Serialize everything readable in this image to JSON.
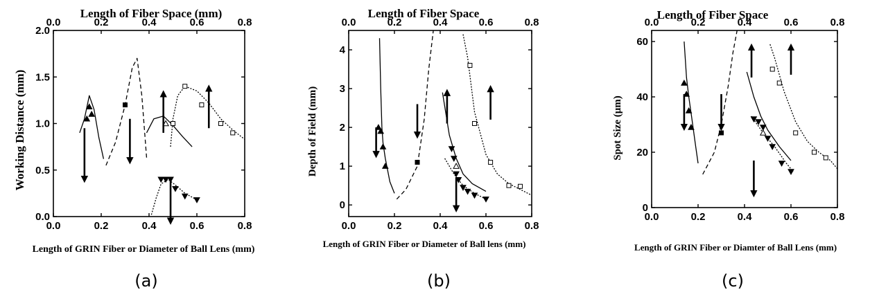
{
  "panels_text": {
    "a": {
      "caption": "(a)",
      "top_label": "Length of Fiber Space (mm)",
      "bottom_label": "Length of GRIN Fiber or Diameter of Ball Lens (mm)",
      "left_label": "Working Distance (mm)"
    },
    "b": {
      "caption": "(b)",
      "top_label": "Length of Fiber Space",
      "bottom_label": "Length of GRIN Fiber or Diameter of Ball lens (mm)",
      "left_label": "Depth of Field (mm)"
    },
    "c": {
      "caption": "(c)",
      "top_label": "Length of Fiber Space",
      "bottom_label": "Length of GRIN Fiber or Diamter of Ball Lens (mm)",
      "left_label": "Spot Size (μm)"
    }
  },
  "chart_data": [
    {
      "type": "line",
      "caption": "(a)",
      "title": "Length of Fiber Space (mm)",
      "xlabel": "Length of GRIN Fiber or Diameter of Ball Lens (mm)",
      "ylabel": "Working Distance (mm)",
      "xlim": [
        0.0,
        0.8
      ],
      "ylim": [
        0.0,
        2.0
      ],
      "xticks": [
        "0.0",
        "0.2",
        "0.4",
        "0.6",
        "0.8"
      ],
      "yticks": [
        "0.0",
        "0.5",
        "1.0",
        "1.5",
        "2.0"
      ],
      "top_xticks": [
        "0.0",
        "0.2",
        "0.4",
        "0.6",
        "0.8"
      ],
      "grid": false,
      "series": [
        {
          "style": "solid",
          "x": [
            0.11,
            0.13,
            0.15,
            0.17,
            0.19,
            0.21
          ],
          "y": [
            0.9,
            1.05,
            1.3,
            1.15,
            0.85,
            0.62
          ]
        },
        {
          "style": "dashed",
          "x": [
            0.22,
            0.26,
            0.3,
            0.33,
            0.35,
            0.37,
            0.39
          ],
          "y": [
            0.55,
            0.8,
            1.2,
            1.6,
            1.7,
            1.3,
            0.63
          ]
        },
        {
          "style": "solid",
          "x": [
            0.39,
            0.42,
            0.46,
            0.5,
            0.54,
            0.58
          ],
          "y": [
            0.9,
            1.05,
            1.08,
            0.98,
            0.86,
            0.75
          ]
        },
        {
          "style": "dotted",
          "x": [
            0.49,
            0.5,
            0.52,
            0.55,
            0.6,
            0.65,
            0.7,
            0.75,
            0.8
          ],
          "y": [
            0.75,
            1.05,
            1.3,
            1.4,
            1.35,
            1.22,
            1.05,
            0.93,
            0.83
          ]
        },
        {
          "style": "dotted",
          "x": [
            0.41,
            0.43,
            0.45,
            0.48,
            0.51,
            0.55,
            0.6
          ],
          "y": [
            0.02,
            0.2,
            0.35,
            0.4,
            0.34,
            0.25,
            0.18
          ]
        }
      ],
      "markers": [
        {
          "shape": "triangle-up",
          "x": [
            0.14,
            0.15,
            0.16
          ],
          "y": [
            1.05,
            1.18,
            1.1
          ]
        },
        {
          "shape": "square-filled",
          "x": [
            0.3
          ],
          "y": [
            1.2
          ]
        },
        {
          "shape": "triangle-up-open",
          "x": [
            0.47
          ],
          "y": [
            1.0
          ]
        },
        {
          "shape": "square-open",
          "x": [
            0.5,
            0.55,
            0.62,
            0.7,
            0.75
          ],
          "y": [
            1.0,
            1.4,
            1.2,
            1.0,
            0.9
          ]
        },
        {
          "shape": "triangle-down",
          "x": [
            0.45,
            0.47,
            0.49,
            0.51,
            0.55,
            0.6
          ],
          "y": [
            0.4,
            0.4,
            0.4,
            0.3,
            0.22,
            0.18
          ]
        }
      ],
      "arrows": [
        {
          "direction": "down",
          "x": 0.13,
          "y_from": 0.95,
          "y_to": 0.4
        },
        {
          "direction": "down",
          "x": 0.32,
          "y_from": 1.05,
          "y_to": 0.6
        },
        {
          "direction": "up",
          "x": 0.46,
          "y_from": 0.9,
          "y_to": 1.32
        },
        {
          "direction": "down",
          "x": 0.49,
          "y_from": 0.38,
          "y_to": -0.05
        },
        {
          "direction": "up",
          "x": 0.65,
          "y_from": 0.95,
          "y_to": 1.38
        }
      ]
    },
    {
      "type": "line",
      "caption": "(b)",
      "title": "Length of Fiber Space",
      "xlabel": "Length of GRIN Fiber or Diameter of Ball lens (mm)",
      "ylabel": "Depth of Field (mm)",
      "xlim": [
        0.0,
        0.8
      ],
      "ylim": [
        -0.3,
        4.5
      ],
      "xticks": [
        "0.0",
        "0.2",
        "0.4",
        "0.6",
        "0.8"
      ],
      "yticks": [
        "0",
        "1",
        "2",
        "3",
        "4"
      ],
      "top_xticks": [
        "0.0",
        "0.2",
        "0.4",
        "0.6",
        "0.8"
      ],
      "grid": false,
      "series": [
        {
          "style": "solid",
          "x": [
            0.135,
            0.14,
            0.145,
            0.15,
            0.16,
            0.17,
            0.18,
            0.2
          ],
          "y": [
            4.3,
            3.0,
            2.0,
            1.6,
            1.2,
            0.9,
            0.6,
            0.3
          ]
        },
        {
          "style": "dashed",
          "x": [
            0.21,
            0.25,
            0.3,
            0.33,
            0.35,
            0.37
          ],
          "y": [
            0.15,
            0.4,
            1.0,
            2.2,
            3.5,
            4.5
          ]
        },
        {
          "style": "solid",
          "x": [
            0.41,
            0.44,
            0.47,
            0.5,
            0.54,
            0.6
          ],
          "y": [
            2.9,
            1.8,
            1.2,
            0.8,
            0.55,
            0.35
          ]
        },
        {
          "style": "dotted",
          "x": [
            0.42,
            0.46,
            0.5,
            0.55,
            0.6
          ],
          "y": [
            1.2,
            0.8,
            0.5,
            0.3,
            0.15
          ]
        },
        {
          "style": "dotted",
          "x": [
            0.5,
            0.52,
            0.55,
            0.6,
            0.65,
            0.7,
            0.8
          ],
          "y": [
            4.4,
            3.8,
            2.4,
            1.3,
            0.8,
            0.55,
            0.25
          ]
        }
      ],
      "markers": [
        {
          "shape": "triangle-up",
          "x": [
            0.13,
            0.14,
            0.15,
            0.16
          ],
          "y": [
            2.0,
            1.9,
            1.5,
            1.0
          ]
        },
        {
          "shape": "square-filled",
          "x": [
            0.3
          ],
          "y": [
            1.1
          ]
        },
        {
          "shape": "triangle-up-open",
          "x": [
            0.47
          ],
          "y": [
            1.0
          ]
        },
        {
          "shape": "square-open",
          "x": [
            0.53,
            0.55,
            0.62,
            0.7,
            0.75
          ],
          "y": [
            3.6,
            2.1,
            1.1,
            0.5,
            0.48
          ]
        },
        {
          "shape": "triangle-down",
          "x": [
            0.45,
            0.46,
            0.47,
            0.48,
            0.5,
            0.52,
            0.55,
            0.6
          ],
          "y": [
            1.45,
            1.2,
            0.8,
            0.65,
            0.45,
            0.35,
            0.25,
            0.15
          ]
        }
      ],
      "arrows": [
        {
          "direction": "down",
          "x": 0.12,
          "y_from": 2.0,
          "y_to": 1.3
        },
        {
          "direction": "down",
          "x": 0.3,
          "y_from": 2.6,
          "y_to": 1.8
        },
        {
          "direction": "up",
          "x": 0.43,
          "y_from": 2.1,
          "y_to": 2.9
        },
        {
          "direction": "down",
          "x": 0.47,
          "y_from": 0.7,
          "y_to": -0.1
        },
        {
          "direction": "up",
          "x": 0.62,
          "y_from": 2.2,
          "y_to": 3.0
        }
      ]
    },
    {
      "type": "line",
      "caption": "(c)",
      "title": "Length of Fiber Space",
      "xlabel": "Length of GRIN Fiber or Diamter of Ball Lens (mm)",
      "ylabel": "Spot Size (μm)",
      "xlim": [
        0.0,
        0.8
      ],
      "ylim": [
        0,
        64
      ],
      "xticks": [
        "0.0",
        "0.2",
        "0.4",
        "0.6",
        "0.8"
      ],
      "yticks": [
        "0",
        "20",
        "40",
        "60"
      ],
      "top_xticks": [
        "0.0",
        "0.2",
        "0.4",
        "0.6",
        "0.8"
      ],
      "grid": false,
      "series": [
        {
          "style": "solid",
          "x": [
            0.14,
            0.15,
            0.16,
            0.17,
            0.18,
            0.19,
            0.2
          ],
          "y": [
            60,
            47,
            40,
            34,
            28,
            22,
            16
          ]
        },
        {
          "style": "dashed",
          "x": [
            0.22,
            0.27,
            0.3,
            0.33,
            0.35,
            0.37
          ],
          "y": [
            12,
            20,
            30,
            44,
            56,
            65
          ]
        },
        {
          "style": "solid",
          "x": [
            0.41,
            0.44,
            0.47,
            0.5,
            0.55,
            0.6
          ],
          "y": [
            49,
            40,
            33,
            28,
            22,
            17
          ]
        },
        {
          "style": "dotted",
          "x": [
            0.43,
            0.48,
            0.53,
            0.58,
            0.61
          ],
          "y": [
            33,
            27,
            22,
            16,
            13
          ]
        },
        {
          "style": "dotted",
          "x": [
            0.51,
            0.53,
            0.57,
            0.62,
            0.67,
            0.72,
            0.77,
            0.8
          ],
          "y": [
            59,
            54,
            42,
            31,
            24,
            20,
            17,
            14
          ]
        }
      ],
      "markers": [
        {
          "shape": "triangle-up",
          "x": [
            0.14,
            0.15,
            0.16,
            0.17
          ],
          "y": [
            45,
            41,
            35,
            29
          ]
        },
        {
          "shape": "square-filled",
          "x": [
            0.3
          ],
          "y": [
            27
          ]
        },
        {
          "shape": "triangle-up-open",
          "x": [
            0.48
          ],
          "y": [
            27
          ]
        },
        {
          "shape": "square-open",
          "x": [
            0.52,
            0.55,
            0.62,
            0.7,
            0.75
          ],
          "y": [
            50,
            45,
            27,
            20,
            18
          ]
        },
        {
          "shape": "triangle-down",
          "x": [
            0.44,
            0.46,
            0.48,
            0.5,
            0.52,
            0.56,
            0.6
          ],
          "y": [
            32,
            31,
            29,
            25,
            22,
            16,
            13
          ]
        }
      ],
      "arrows": [
        {
          "direction": "down",
          "x": 0.14,
          "y_from": 41,
          "y_to": 29
        },
        {
          "direction": "down",
          "x": 0.3,
          "y_from": 41,
          "y_to": 29
        },
        {
          "direction": "up",
          "x": 0.43,
          "y_from": 47,
          "y_to": 58
        },
        {
          "direction": "down",
          "x": 0.44,
          "y_from": 17,
          "y_to": 5
        },
        {
          "direction": "up",
          "x": 0.6,
          "y_from": 48,
          "y_to": 58
        }
      ]
    }
  ]
}
